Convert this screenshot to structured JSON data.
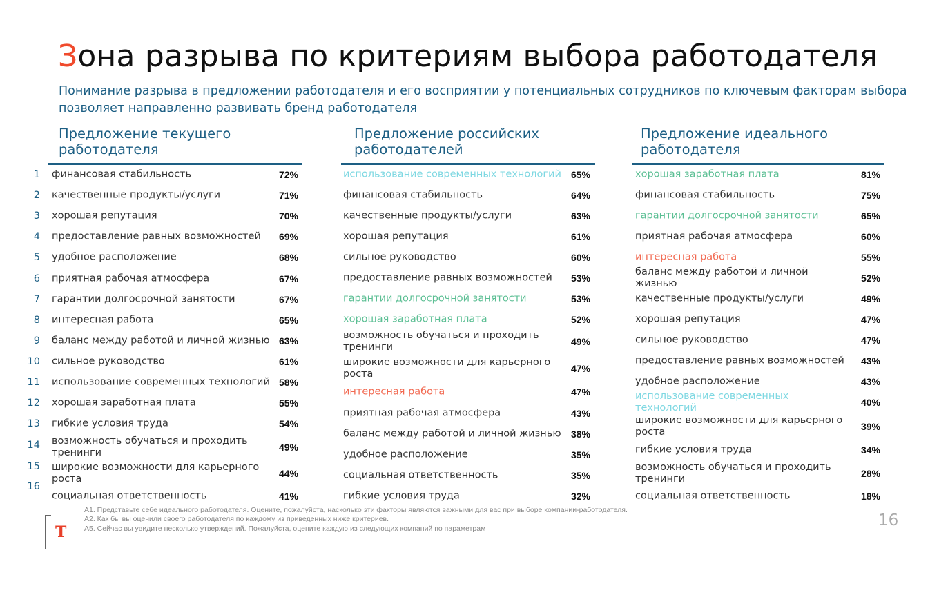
{
  "title": {
    "first_letter": "З",
    "rest": "она разрыва по критериям выбора работодателя"
  },
  "subtitle": "Понимание разрыва в предложении работодателя и его восприятии у потенциальных сотрудников по ключевым факторам выбора позволяет направленно развивать бренд работодателя",
  "colors": {
    "accent": "#f04a2c",
    "heading": "#1d5f84",
    "tech": "#7fd8e2",
    "green": "#5cbf94",
    "orange": "#f26a52"
  },
  "row_numbers": [
    "1",
    "2",
    "3",
    "4",
    "5",
    "6",
    "7",
    "8",
    "9",
    "10",
    "11",
    "12",
    "13",
    "14",
    "15",
    "16"
  ],
  "columns": [
    {
      "header": "Предложение текущего работодателя",
      "rows": [
        {
          "label": "финансовая стабильность",
          "value": "72%"
        },
        {
          "label": "качественные продукты/услуги",
          "value": "71%"
        },
        {
          "label": "хорошая репутация",
          "value": "70%"
        },
        {
          "label": "предоставление равных возможностей",
          "value": "69%"
        },
        {
          "label": "удобное расположение",
          "value": "68%"
        },
        {
          "label": "приятная рабочая атмосфера",
          "value": "67%"
        },
        {
          "label": "гарантии долгосрочной занятости",
          "value": "67%"
        },
        {
          "label": "интересная работа",
          "value": "65%"
        },
        {
          "label": "баланс между работой и личной жизнью",
          "value": "63%"
        },
        {
          "label": "сильное руководство",
          "value": "61%"
        },
        {
          "label": "использование современных технологий",
          "value": "58%"
        },
        {
          "label": "хорошая заработная плата",
          "value": "55%"
        },
        {
          "label": "гибкие условия труда",
          "value": "54%"
        },
        {
          "label": "возможность обучаться и проходить тренинги",
          "value": "49%"
        },
        {
          "label": "широкие возможности для карьерного роста",
          "value": "44%"
        },
        {
          "label": "социальная ответственность",
          "value": "41%"
        }
      ]
    },
    {
      "header": "Предложение российских работодателей",
      "rows": [
        {
          "label": "использование современных технологий",
          "value": "65%",
          "highlight": "tech"
        },
        {
          "label": "финансовая стабильность",
          "value": "64%"
        },
        {
          "label": "качественные продукты/услуги",
          "value": "63%"
        },
        {
          "label": "хорошая репутация",
          "value": "61%"
        },
        {
          "label": "сильное руководство",
          "value": "60%"
        },
        {
          "label": "предоставление равных возможностей",
          "value": "53%"
        },
        {
          "label": "гарантии долгосрочной занятости",
          "value": "53%",
          "highlight": "green"
        },
        {
          "label": "хорошая заработная плата",
          "value": "52%",
          "highlight": "green"
        },
        {
          "label": "возможность обучаться и проходить тренинги",
          "value": "49%"
        },
        {
          "label": "широкие возможности для карьерного роста",
          "value": "47%"
        },
        {
          "label": "интересная работа",
          "value": "47%",
          "highlight": "orange"
        },
        {
          "label": "приятная рабочая атмосфера",
          "value": "43%"
        },
        {
          "label": "баланс между работой и личной жизнью",
          "value": "38%"
        },
        {
          "label": "удобное расположение",
          "value": "35%"
        },
        {
          "label": "социальная ответственность",
          "value": "35%"
        },
        {
          "label": "гибкие условия труда",
          "value": "32%"
        }
      ]
    },
    {
      "header": "Предложение идеального работодателя",
      "rows": [
        {
          "label": "хорошая заработная плата",
          "value": "81%",
          "highlight": "green"
        },
        {
          "label": "финансовая стабильность",
          "value": "75%"
        },
        {
          "label": "гарантии долгосрочной занятости",
          "value": "65%",
          "highlight": "green"
        },
        {
          "label": "приятная рабочая атмосфера",
          "value": "60%"
        },
        {
          "label": "интересная работа",
          "value": "55%",
          "highlight": "orange"
        },
        {
          "label": "баланс между работой и личной жизнью",
          "value": "52%"
        },
        {
          "label": "качественные продукты/услуги",
          "value": "49%"
        },
        {
          "label": "хорошая репутация",
          "value": "47%"
        },
        {
          "label": "сильное руководство",
          "value": "47%"
        },
        {
          "label": "предоставление равных возможностей",
          "value": "43%"
        },
        {
          "label": "удобное расположение",
          "value": "43%"
        },
        {
          "label": "использование современных технологий",
          "value": "40%",
          "highlight": "tech"
        },
        {
          "label": "широкие возможности для карьерного роста",
          "value": "39%"
        },
        {
          "label": "гибкие условия труда",
          "value": "34%"
        },
        {
          "label": "возможность обучаться и проходить тренинги",
          "value": "28%"
        },
        {
          "label": "социальная ответственность",
          "value": "18%"
        }
      ]
    }
  ],
  "footnotes": [
    "А1. Представьте себе идеального работодателя. Оцените, пожалуйста, насколько эти факторы являются важными для вас при выборе компании-работодателя.",
    "А2. Как бы вы оценили своего работодателя по каждому из приведенных ниже критериев.",
    "А5. Сейчас вы увидите несколько утверждений. Пожалуйста, оцените каждую из следующих компаний по параметрам"
  ],
  "page_number": "16",
  "logo": {
    "letter": "Т"
  }
}
